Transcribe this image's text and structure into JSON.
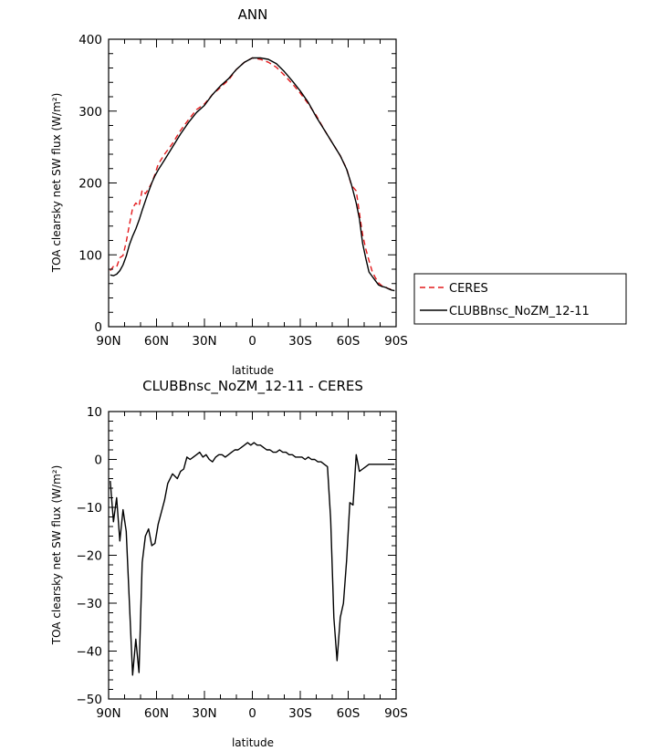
{
  "chart_data": [
    {
      "type": "line",
      "title": "ANN",
      "xlabel": "latitude",
      "ylabel": "TOA clearsky net SW flux (W/m²)",
      "xlim": [
        90,
        -90
      ],
      "ylim": [
        0,
        400
      ],
      "xticks": [
        90,
        60,
        30,
        0,
        -30,
        -60,
        -90
      ],
      "xtick_labels": [
        "90N",
        "60N",
        "30N",
        "0",
        "30S",
        "60S",
        "90S"
      ],
      "yticks": [
        0,
        100,
        200,
        300,
        400
      ],
      "ytick_labels": [
        "0",
        "100",
        "200",
        "300",
        "400"
      ],
      "legend": {
        "position": "right",
        "entries": [
          "CERES",
          "CLUBBnsc_NoZM_12-11"
        ]
      },
      "series": [
        {
          "name": "CERES",
          "color": "#e41a1c",
          "dash": "dashed",
          "x": [
            89,
            87,
            85,
            83,
            81,
            79,
            77,
            75,
            73,
            71,
            69,
            67,
            65,
            63,
            61,
            59,
            57,
            55,
            50,
            45,
            40,
            35,
            30,
            25,
            20,
            15,
            10,
            5,
            0,
            -5,
            -10,
            -15,
            -20,
            -25,
            -30,
            -35,
            -40,
            -45,
            -50,
            -55,
            -59,
            -62,
            -65,
            -67,
            -69,
            -71,
            -73,
            -75,
            -77,
            -79,
            -81,
            -83,
            -85,
            -87,
            -89
          ],
          "y": [
            78,
            84,
            83,
            96,
            99,
            118,
            142,
            165,
            172,
            168,
            190,
            185,
            192,
            200,
            212,
            226,
            233,
            240,
            255,
            273,
            288,
            302,
            310,
            323,
            333,
            343,
            358,
            368,
            374,
            372,
            368,
            361,
            350,
            338,
            325,
            310,
            294,
            274,
            256,
            238,
            220,
            197,
            189,
            158,
            128,
            108,
            92,
            77,
            68,
            61,
            57,
            56,
            53,
            52,
            51
          ]
        },
        {
          "name": "CLUBBnsc_NoZM_12-11",
          "color": "#000000",
          "dash": "solid",
          "x": [
            89,
            87,
            85,
            83,
            81,
            79,
            77,
            75,
            73,
            71,
            69,
            67,
            65,
            63,
            61,
            59,
            57,
            55,
            50,
            45,
            40,
            35,
            30,
            25,
            20,
            15,
            10,
            5,
            0,
            -5,
            -10,
            -15,
            -20,
            -25,
            -30,
            -35,
            -40,
            -45,
            -50,
            -55,
            -59,
            -62,
            -65,
            -67,
            -69,
            -71,
            -73,
            -75,
            -77,
            -79,
            -81,
            -83,
            -85,
            -87,
            -89
          ],
          "y": [
            72,
            71,
            73,
            78,
            86,
            98,
            114,
            126,
            136,
            148,
            162,
            175,
            188,
            200,
            210,
            218,
            225,
            232,
            250,
            268,
            284,
            298,
            308,
            323,
            335,
            345,
            358,
            368,
            374,
            374,
            372,
            366,
            355,
            342,
            328,
            312,
            292,
            274,
            256,
            238,
            219,
            198,
            172,
            150,
            116,
            95,
            76,
            70,
            64,
            58,
            56,
            55,
            53,
            51,
            50
          ]
        }
      ]
    },
    {
      "type": "line",
      "title": "CLUBBnsc_NoZM_12-11 - CERES",
      "xlabel": "latitude",
      "ylabel": "TOA clearsky net SW flux (W/m²)",
      "xlim": [
        90,
        -90
      ],
      "ylim": [
        -50,
        10
      ],
      "xticks": [
        90,
        60,
        30,
        0,
        -30,
        -60,
        -90
      ],
      "xtick_labels": [
        "90N",
        "60N",
        "30N",
        "0",
        "30S",
        "60S",
        "90S"
      ],
      "yticks": [
        -50,
        -40,
        -30,
        -20,
        -10,
        0,
        10
      ],
      "ytick_labels": [
        "−50",
        "−40",
        "−30",
        "−20",
        "−10",
        "0",
        "10"
      ],
      "series": [
        {
          "color": "#000000",
          "dash": "solid",
          "x": [
            89,
            87,
            85,
            83,
            81,
            79,
            77,
            75,
            73,
            71,
            69,
            67,
            65,
            63,
            61,
            59,
            57,
            55,
            53,
            50,
            47,
            45,
            43,
            41,
            39,
            37,
            35,
            33,
            31,
            29,
            27,
            25,
            23,
            21,
            19,
            17,
            15,
            13,
            11,
            9,
            7,
            5,
            3,
            1,
            -1,
            -3,
            -5,
            -7,
            -9,
            -11,
            -13,
            -15,
            -17,
            -19,
            -21,
            -23,
            -25,
            -27,
            -29,
            -31,
            -33,
            -35,
            -37,
            -39,
            -41,
            -43,
            -45,
            -47,
            -49,
            -51,
            -53,
            -55,
            -57,
            -59,
            -61,
            -63,
            -65,
            -67,
            -69,
            -71,
            -73,
            -75,
            -77,
            -79,
            -81,
            -83,
            -85,
            -87,
            -89
          ],
          "y": [
            -4.5,
            -13,
            -8,
            -17,
            -10.5,
            -15,
            -30,
            -45,
            -37.5,
            -44.5,
            -21.5,
            -16,
            -14.5,
            -18,
            -17.5,
            -13.5,
            -11,
            -8.5,
            -5,
            -3,
            -4,
            -2.5,
            -2,
            0.5,
            0,
            0.5,
            1,
            1.5,
            0.5,
            1,
            0,
            -0.5,
            0.5,
            1,
            1,
            0.5,
            1,
            1.5,
            2,
            2,
            2.5,
            3,
            3.5,
            3,
            3.5,
            3,
            3,
            2.5,
            2,
            2,
            1.5,
            1.5,
            2,
            1.5,
            1.5,
            1,
            1,
            0.5,
            0.5,
            0.5,
            0,
            0.5,
            0,
            0,
            -0.5,
            -0.5,
            -1,
            -1.5,
            -12.5,
            -33,
            -42,
            -33,
            -30,
            -21,
            -9,
            -9.5,
            1,
            -2.5,
            -2,
            -1.5,
            -1,
            -1,
            -1,
            -1,
            -1,
            -1,
            -1,
            -1,
            -1
          ],
          "note_dummy": ""
        }
      ]
    }
  ]
}
